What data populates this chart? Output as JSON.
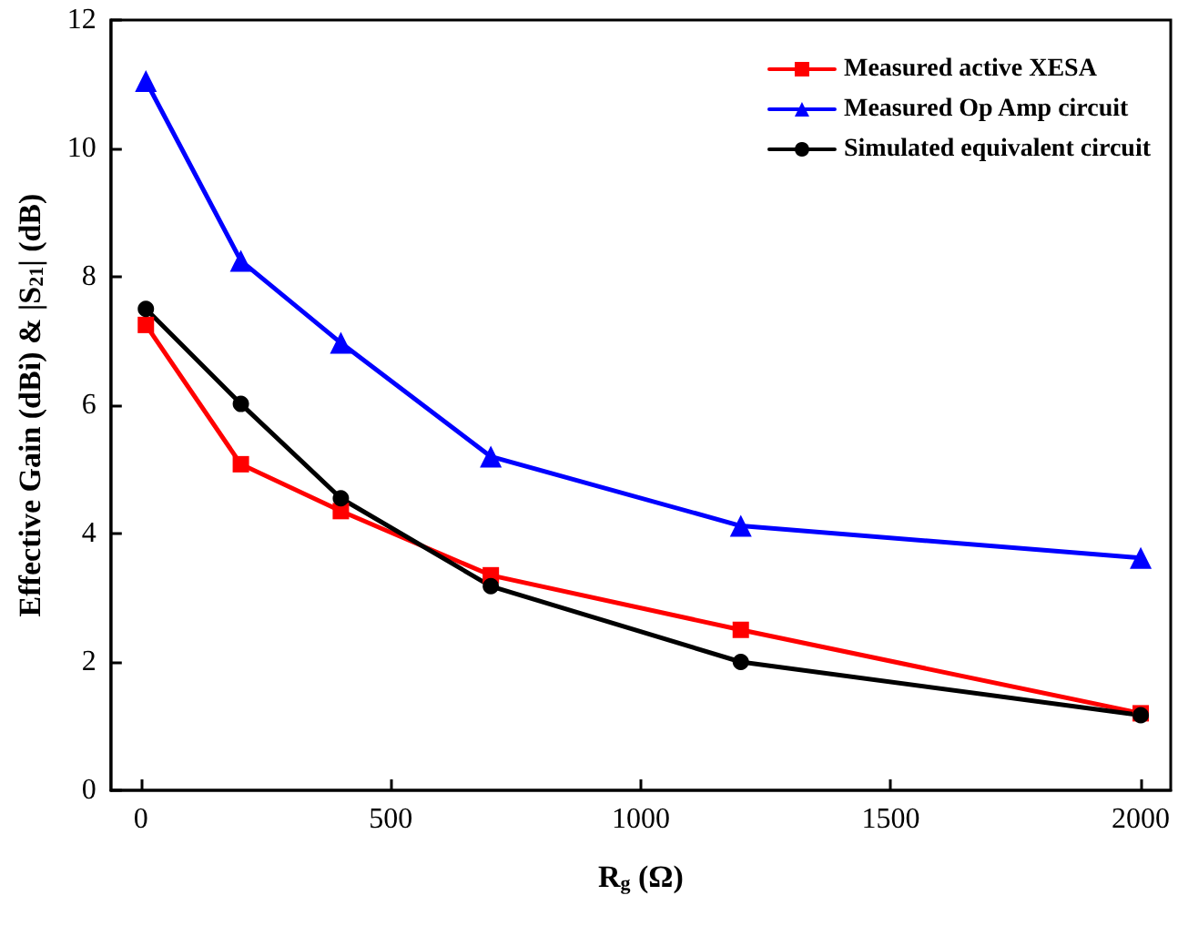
{
  "chart_data": {
    "type": "line",
    "xlabel": "R$_{g}$ (Ω)",
    "ylabel": "Effective Gain (dBi) & |S$_{21}$| (dB)",
    "x": [
      10,
      200,
      400,
      700,
      1200,
      2000
    ],
    "series": [
      {
        "name": "Measured active XESA",
        "color": "#ff0000",
        "marker": "square",
        "values": [
          7.25,
          5.08,
          4.35,
          3.35,
          2.5,
          1.2
        ]
      },
      {
        "name": "Measured Op Amp circuit",
        "color": "#0000ff",
        "marker": "triangle",
        "values": [
          11.05,
          8.25,
          6.97,
          5.2,
          4.12,
          3.62
        ]
      },
      {
        "name": "Simulated equivalent circuit",
        "color": "#000000",
        "marker": "circle",
        "values": [
          7.5,
          6.02,
          4.55,
          3.18,
          2.0,
          1.17
        ]
      }
    ],
    "xlim": [
      -60,
      2060
    ],
    "xticks": [
      0,
      500,
      1000,
      1500,
      2000
    ],
    "ylim": [
      0,
      12
    ],
    "yticks": [
      0,
      2,
      4,
      6,
      8,
      10,
      12
    ],
    "legend": "top right",
    "line_style": "solid"
  }
}
